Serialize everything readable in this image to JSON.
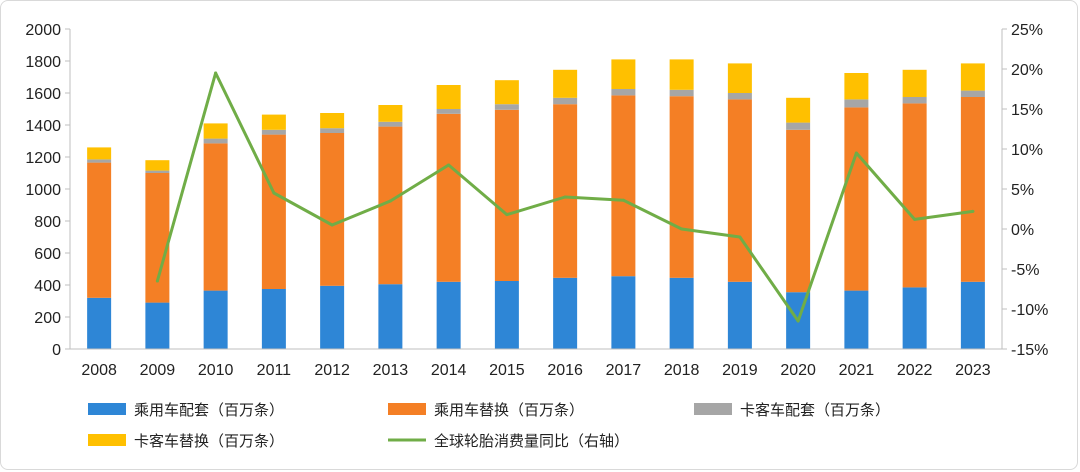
{
  "chart_data": {
    "type": "bar",
    "stacked": true,
    "categories": [
      "2008",
      "2009",
      "2010",
      "2011",
      "2012",
      "2013",
      "2014",
      "2015",
      "2016",
      "2017",
      "2018",
      "2019",
      "2020",
      "2021",
      "2022",
      "2023"
    ],
    "series": [
      {
        "name": "乘用车配套（百万条）",
        "axis": "left",
        "type": "bar",
        "color": "#2e86d6",
        "values": [
          320,
          290,
          365,
          375,
          395,
          405,
          420,
          425,
          445,
          455,
          445,
          420,
          355,
          365,
          385,
          420
        ]
      },
      {
        "name": "乘用车替换（百万条）",
        "axis": "left",
        "type": "bar",
        "color": "#f47f25",
        "values": [
          845,
          810,
          920,
          965,
          955,
          985,
          1050,
          1070,
          1085,
          1130,
          1135,
          1140,
          1015,
          1145,
          1150,
          1155
        ]
      },
      {
        "name": "卡客车配套（百万条）",
        "axis": "left",
        "type": "bar",
        "color": "#a6a6a6",
        "values": [
          20,
          15,
          30,
          30,
          30,
          30,
          30,
          35,
          40,
          40,
          40,
          40,
          45,
          50,
          40,
          40
        ]
      },
      {
        "name": "卡客车替换（百万条）",
        "axis": "left",
        "type": "bar",
        "color": "#ffc000",
        "values": [
          75,
          65,
          95,
          95,
          95,
          105,
          150,
          150,
          175,
          185,
          190,
          185,
          155,
          165,
          170,
          170
        ]
      },
      {
        "name": "全球轮胎消费量同比（右轴）",
        "axis": "right",
        "type": "line",
        "color": "#70ad47",
        "values": [
          null,
          -6.5,
          19.5,
          4.5,
          0.5,
          3.5,
          8.0,
          1.8,
          4.0,
          3.6,
          0.0,
          -1.0,
          -11.5,
          9.5,
          1.2,
          2.2
        ]
      }
    ],
    "y_left": {
      "lim": [
        0,
        2000
      ],
      "ticks": [
        "0",
        "200",
        "400",
        "600",
        "800",
        "1000",
        "1200",
        "1400",
        "1600",
        "1800",
        "2000"
      ]
    },
    "y_right": {
      "lim": [
        -15,
        25
      ],
      "ticks": [
        "-15%",
        "-10%",
        "-5%",
        "0%",
        "5%",
        "10%",
        "15%",
        "20%",
        "25%"
      ]
    },
    "legend": {
      "placement": "bottom",
      "row1": [
        "乘用车配套（百万条）",
        "乘用车替换（百万条）",
        "卡客车配套（百万条）"
      ],
      "row2": [
        "卡客车替换（百万条）",
        "全球轮胎消费量同比（右轴）"
      ]
    },
    "grid": false
  }
}
